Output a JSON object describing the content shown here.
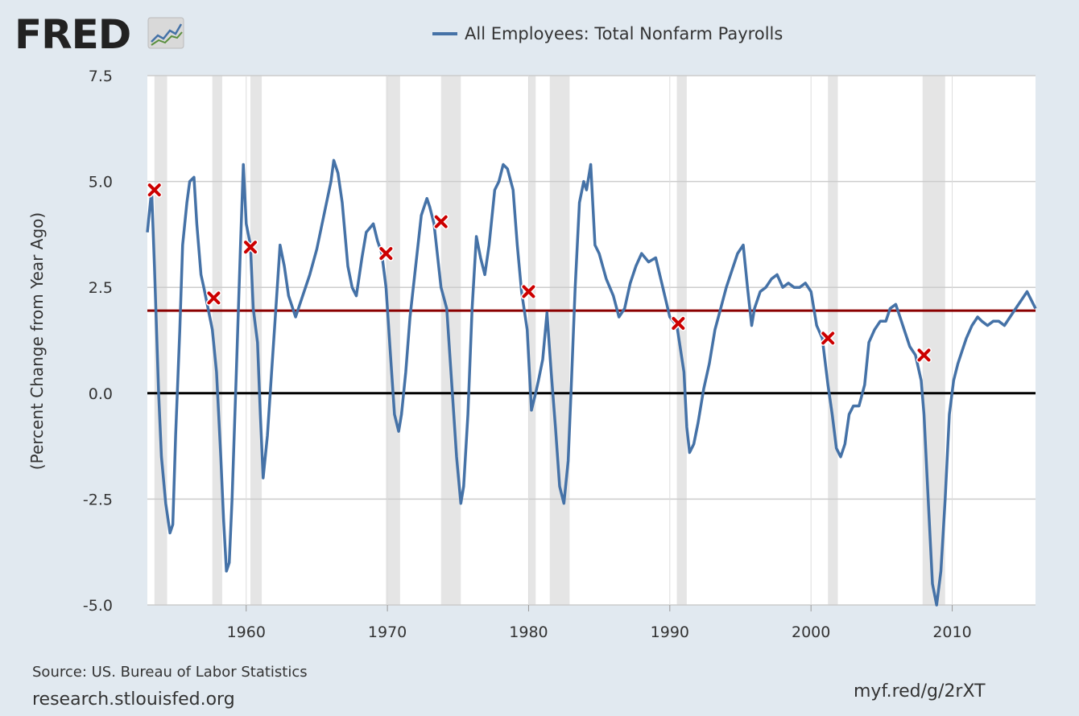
{
  "logo": {
    "text": "FRED",
    "icon": "chart-line-icon"
  },
  "footer": {
    "source": "Source: US. Bureau of Labor Statistics",
    "site": "research.stlouisfed.org",
    "shortlink": "myf.red/g/2rXT"
  },
  "colors": {
    "background": "#e1e9f0",
    "plot": "#ffffff",
    "series": "#4572a7",
    "recession": "#e5e5e5",
    "reference_line": "#8b0000",
    "zero_line": "#000000",
    "marker": "#cc0000"
  },
  "chart_data": {
    "type": "line",
    "title": "",
    "legend": [
      "All Employees: Total Nonfarm Payrolls"
    ],
    "ylabel": "(Percent Change from Year Ago)",
    "xlabel": "",
    "xlim": [
      1953,
      2015.9
    ],
    "ylim": [
      -5.0,
      7.5
    ],
    "xticks": [
      1960,
      1970,
      1980,
      1990,
      2000,
      2010
    ],
    "xtick_labels": [
      "1960",
      "1970",
      "1980",
      "1990",
      "2000",
      "2010"
    ],
    "yticks": [
      -5.0,
      -2.5,
      0.0,
      2.5,
      5.0,
      7.5
    ],
    "ytick_labels": [
      "-5.0",
      "-2.5",
      "0.0",
      "2.5",
      "5.0",
      "7.5"
    ],
    "grid": true,
    "reference_lines": [
      {
        "y": 1.95,
        "color": "#8b0000"
      },
      {
        "y": 0.0,
        "color": "#000000"
      }
    ],
    "recessions": [
      [
        1953.5,
        1954.4
      ],
      [
        1957.6,
        1958.3
      ],
      [
        1960.3,
        1961.1
      ],
      [
        1969.9,
        1970.9
      ],
      [
        1973.8,
        1975.2
      ],
      [
        1980.0,
        1980.5
      ],
      [
        1981.5,
        1982.9
      ],
      [
        1990.5,
        1991.2
      ],
      [
        2001.2,
        2001.9
      ],
      [
        2007.9,
        2009.5
      ]
    ],
    "series": [
      {
        "name": "All Employees: Total Nonfarm Payrolls",
        "x": [
          1953.0,
          1953.3,
          1953.5,
          1953.8,
          1954.0,
          1954.3,
          1954.6,
          1954.8,
          1955.0,
          1955.3,
          1955.5,
          1955.8,
          1956.0,
          1956.3,
          1956.5,
          1956.8,
          1957.0,
          1957.3,
          1957.6,
          1957.9,
          1958.2,
          1958.4,
          1958.6,
          1958.8,
          1959.0,
          1959.3,
          1959.6,
          1959.8,
          1960.0,
          1960.3,
          1960.5,
          1960.8,
          1961.0,
          1961.2,
          1961.5,
          1961.8,
          1962.1,
          1962.4,
          1962.7,
          1963.0,
          1963.5,
          1964.0,
          1964.5,
          1965.0,
          1965.5,
          1966.0,
          1966.2,
          1966.5,
          1966.8,
          1967.2,
          1967.5,
          1967.8,
          1968.2,
          1968.5,
          1969.0,
          1969.3,
          1969.6,
          1969.9,
          1970.2,
          1970.5,
          1970.8,
          1971.0,
          1971.3,
          1971.6,
          1972.0,
          1972.4,
          1972.8,
          1973.0,
          1973.3,
          1973.8,
          1974.2,
          1974.6,
          1974.9,
          1975.2,
          1975.4,
          1975.7,
          1976.0,
          1976.3,
          1976.6,
          1976.9,
          1977.2,
          1977.6,
          1977.9,
          1978.2,
          1978.5,
          1978.9,
          1979.2,
          1979.5,
          1979.9,
          1980.2,
          1980.5,
          1980.7,
          1981.0,
          1981.3,
          1981.6,
          1981.9,
          1982.2,
          1982.5,
          1982.8,
          1983.0,
          1983.3,
          1983.6,
          1983.9,
          1984.1,
          1984.4,
          1984.7,
          1985.0,
          1985.5,
          1986.0,
          1986.4,
          1986.8,
          1987.2,
          1987.6,
          1988.0,
          1988.5,
          1989.0,
          1989.5,
          1990.0,
          1990.5,
          1991.0,
          1991.2,
          1991.4,
          1991.7,
          1992.0,
          1992.4,
          1992.8,
          1993.2,
          1993.6,
          1994.0,
          1994.4,
          1994.8,
          1995.2,
          1995.5,
          1995.8,
          1996.0,
          1996.4,
          1996.8,
          1997.2,
          1997.6,
          1998.0,
          1998.4,
          1998.8,
          1999.2,
          1999.6,
          2000.0,
          2000.4,
          2000.8,
          2001.2,
          2001.5,
          2001.8,
          2002.1,
          2002.4,
          2002.7,
          2003.0,
          2003.4,
          2003.8,
          2004.1,
          2004.5,
          2004.9,
          2005.3,
          2005.6,
          2006.0,
          2006.3,
          2006.6,
          2007.0,
          2007.4,
          2007.8,
          2008.0,
          2008.3,
          2008.6,
          2008.9,
          2009.2,
          2009.5,
          2009.8,
          2010.1,
          2010.4,
          2010.7,
          2011.0,
          2011.4,
          2011.8,
          2012.1,
          2012.5,
          2012.9,
          2013.3,
          2013.7,
          2014.1,
          2014.5,
          2014.9,
          2015.3,
          2015.9
        ],
        "y": [
          3.8,
          4.8,
          3.0,
          0.0,
          -1.5,
          -2.6,
          -3.3,
          -3.1,
          -1.0,
          1.5,
          3.5,
          4.5,
          5.0,
          5.1,
          4.0,
          2.8,
          2.5,
          2.0,
          1.5,
          0.5,
          -1.5,
          -3.0,
          -4.2,
          -4.0,
          -2.5,
          0.5,
          3.5,
          5.4,
          4.0,
          3.5,
          2.0,
          1.2,
          -0.5,
          -2.0,
          -1.0,
          0.5,
          2.0,
          3.5,
          3.0,
          2.3,
          1.8,
          2.3,
          2.8,
          3.4,
          4.2,
          5.0,
          5.5,
          5.2,
          4.5,
          3.0,
          2.5,
          2.3,
          3.2,
          3.8,
          4.0,
          3.6,
          3.3,
          2.5,
          1.0,
          -0.5,
          -0.9,
          -0.5,
          0.5,
          1.8,
          3.0,
          4.2,
          4.6,
          4.4,
          4.0,
          2.5,
          2.0,
          0.0,
          -1.5,
          -2.6,
          -2.2,
          -0.5,
          2.0,
          3.7,
          3.2,
          2.8,
          3.5,
          4.8,
          5.0,
          5.4,
          5.3,
          4.8,
          3.5,
          2.4,
          1.5,
          -0.4,
          0.0,
          0.3,
          0.8,
          1.9,
          0.5,
          -0.8,
          -2.2,
          -2.6,
          -1.6,
          0.0,
          2.5,
          4.5,
          5.0,
          4.8,
          5.4,
          3.5,
          3.3,
          2.7,
          2.3,
          1.8,
          2.0,
          2.6,
          3.0,
          3.3,
          3.1,
          3.2,
          2.5,
          1.8,
          1.6,
          0.5,
          -0.8,
          -1.4,
          -1.2,
          -0.7,
          0.1,
          0.7,
          1.5,
          2.0,
          2.5,
          2.9,
          3.3,
          3.5,
          2.5,
          1.6,
          2.0,
          2.4,
          2.5,
          2.7,
          2.8,
          2.5,
          2.6,
          2.5,
          2.5,
          2.6,
          2.4,
          1.6,
          1.3,
          0.2,
          -0.5,
          -1.3,
          -1.5,
          -1.2,
          -0.5,
          -0.3,
          -0.3,
          0.2,
          1.2,
          1.5,
          1.7,
          1.7,
          2.0,
          2.1,
          1.8,
          1.5,
          1.1,
          0.9,
          0.3,
          -0.5,
          -2.5,
          -4.5,
          -5.0,
          -4.2,
          -2.5,
          -0.5,
          0.3,
          0.7,
          1.0,
          1.3,
          1.6,
          1.8,
          1.7,
          1.6,
          1.7,
          1.7,
          1.6,
          1.8,
          2.0,
          2.2,
          2.4,
          2.0
        ]
      }
    ],
    "markers": {
      "type": "x",
      "x": [
        1953.5,
        1957.7,
        1960.3,
        1969.9,
        1973.8,
        1980.0,
        1990.6,
        2001.2,
        2008.0
      ],
      "y": [
        4.8,
        2.25,
        3.45,
        3.3,
        4.05,
        2.4,
        1.65,
        1.3,
        0.9
      ]
    }
  }
}
